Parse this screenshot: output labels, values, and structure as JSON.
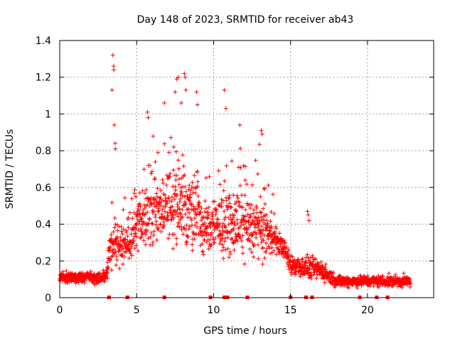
{
  "chart_data": {
    "type": "scatter",
    "title": "Day 148 of 2023, SRMTID for receiver ab43",
    "xlabel": "GPS time / hours",
    "ylabel": "SRMTID / TECUs",
    "xlim": [
      0,
      24.3
    ],
    "ylim": [
      0,
      1.4
    ],
    "xticks": [
      0,
      5,
      10,
      15,
      20
    ],
    "xtick_labels": [
      "0",
      "5",
      "10",
      "15",
      "20"
    ],
    "yticks": [
      0,
      0.2,
      0.4,
      0.6,
      0.8,
      1.0,
      1.2,
      1.4
    ],
    "ytick_labels": [
      "0",
      "0.2",
      "0.4",
      "0.6",
      "0.8",
      "1",
      "1.2",
      "1.4"
    ],
    "grid": true,
    "marker": "plus",
    "color": "#ff0000",
    "series_note": "Dense scatter of ~3000 samples; activity levels by hour (approximate envelope)",
    "activity_profile": [
      {
        "x": 0.0,
        "base": 0.11,
        "spread": 0.04
      },
      {
        "x": 3.0,
        "base": 0.11,
        "spread": 0.04
      },
      {
        "x": 3.3,
        "base": 0.28,
        "spread": 0.14
      },
      {
        "x": 4.5,
        "base": 0.3,
        "spread": 0.12
      },
      {
        "x": 5.5,
        "base": 0.45,
        "spread": 0.22
      },
      {
        "x": 8.0,
        "base": 0.5,
        "spread": 0.28
      },
      {
        "x": 9.5,
        "base": 0.38,
        "spread": 0.16
      },
      {
        "x": 11.0,
        "base": 0.4,
        "spread": 0.2
      },
      {
        "x": 13.0,
        "base": 0.38,
        "spread": 0.2
      },
      {
        "x": 14.5,
        "base": 0.28,
        "spread": 0.06
      },
      {
        "x": 15.0,
        "base": 0.18,
        "spread": 0.08
      },
      {
        "x": 17.0,
        "base": 0.15,
        "spread": 0.07
      },
      {
        "x": 18.0,
        "base": 0.09,
        "spread": 0.04
      },
      {
        "x": 22.8,
        "base": 0.09,
        "spread": 0.04
      }
    ],
    "highlight_points": [
      {
        "x": 3.45,
        "y": 1.32
      },
      {
        "x": 3.5,
        "y": 1.26
      },
      {
        "x": 3.52,
        "y": 1.24
      },
      {
        "x": 3.4,
        "y": 1.13
      },
      {
        "x": 3.55,
        "y": 0.94
      },
      {
        "x": 3.6,
        "y": 0.84
      },
      {
        "x": 3.62,
        "y": 0.81
      },
      {
        "x": 5.7,
        "y": 1.01
      },
      {
        "x": 5.75,
        "y": 0.98
      },
      {
        "x": 6.8,
        "y": 1.06
      },
      {
        "x": 7.6,
        "y": 1.19
      },
      {
        "x": 7.7,
        "y": 1.2
      },
      {
        "x": 7.5,
        "y": 1.12
      },
      {
        "x": 7.9,
        "y": 1.06
      },
      {
        "x": 8.1,
        "y": 1.22
      },
      {
        "x": 8.15,
        "y": 1.2
      },
      {
        "x": 8.2,
        "y": 1.13
      },
      {
        "x": 8.9,
        "y": 1.12
      },
      {
        "x": 8.95,
        "y": 1.05
      },
      {
        "x": 10.7,
        "y": 1.13
      },
      {
        "x": 10.8,
        "y": 1.03
      },
      {
        "x": 11.7,
        "y": 0.94
      },
      {
        "x": 13.1,
        "y": 0.91
      },
      {
        "x": 13.15,
        "y": 0.89
      },
      {
        "x": 16.1,
        "y": 0.47
      },
      {
        "x": 16.15,
        "y": 0.45
      },
      {
        "x": 16.2,
        "y": 0.42
      }
    ],
    "gap_markers_x": [
      3.2,
      4.4,
      6.8,
      9.8,
      10.7,
      10.9,
      12.2,
      15.0,
      16.0,
      16.4,
      19.5,
      20.6,
      21.3
    ]
  }
}
